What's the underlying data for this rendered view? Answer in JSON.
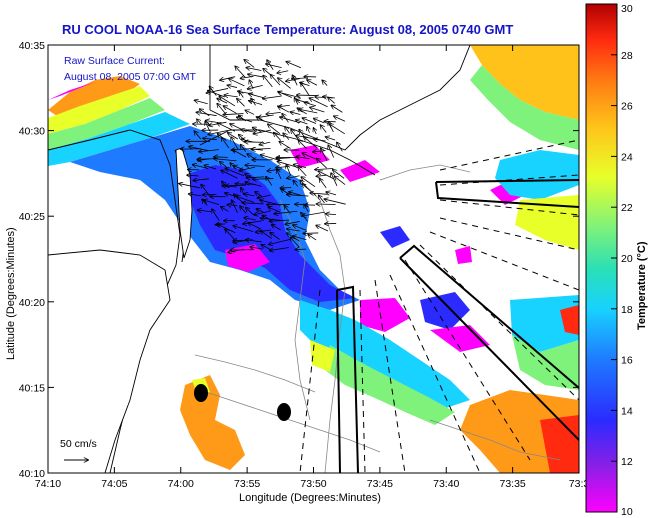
{
  "title": "RU COOL  NOAA-16  Sea Surface Temperature:  August 08, 2005 0740 GMT",
  "overlay_label": "Raw Surface Current:",
  "overlay_time": "August 08, 2005 07:00 GMT",
  "scale_label": "50 cm/s",
  "x_axis": {
    "label": "Longitude (Degrees:Minutes)",
    "ticks": [
      "74:10",
      "74:05",
      "74:00",
      "73:55",
      "73:50",
      "73:45",
      "73:40",
      "73:35",
      "73:3"
    ]
  },
  "y_axis": {
    "label": "Latitude (Degrees:Minutes)",
    "ticks": [
      "40:35",
      "40:30",
      "40:25",
      "40:20",
      "40:15",
      "40:10"
    ]
  },
  "colorbar": {
    "label": "Temperature (°C)",
    "ticks": [
      "30",
      "28",
      "26",
      "24",
      "22",
      "20",
      "18",
      "16",
      "14",
      "12",
      "10"
    ],
    "range": [
      10,
      30
    ],
    "colors": [
      "#ff00ff",
      "#8b1fe6",
      "#2b2bff",
      "#1e7bff",
      "#18d2ff",
      "#2be0b4",
      "#7ef27a",
      "#e8ff2a",
      "#ffc21a",
      "#ff7a12",
      "#ff2a10",
      "#b00000"
    ]
  },
  "chart_data": {
    "type": "heatmap",
    "title": "RU COOL  NOAA-16  Sea Surface Temperature:  August 08, 2005 0740 GMT",
    "xlabel": "Longitude (Degrees:Minutes)",
    "ylabel": "Latitude (Degrees:Minutes)",
    "value_label": "Temperature (°C)",
    "value_range": [
      10,
      30
    ],
    "x_ticks": [
      "74:10",
      "74:05",
      "74:00",
      "73:55",
      "73:50",
      "73:45",
      "73:40",
      "73:35",
      "73:3"
    ],
    "y_ticks": [
      "40:35",
      "40:30",
      "40:25",
      "40:20",
      "40:15",
      "40:10"
    ]
  }
}
